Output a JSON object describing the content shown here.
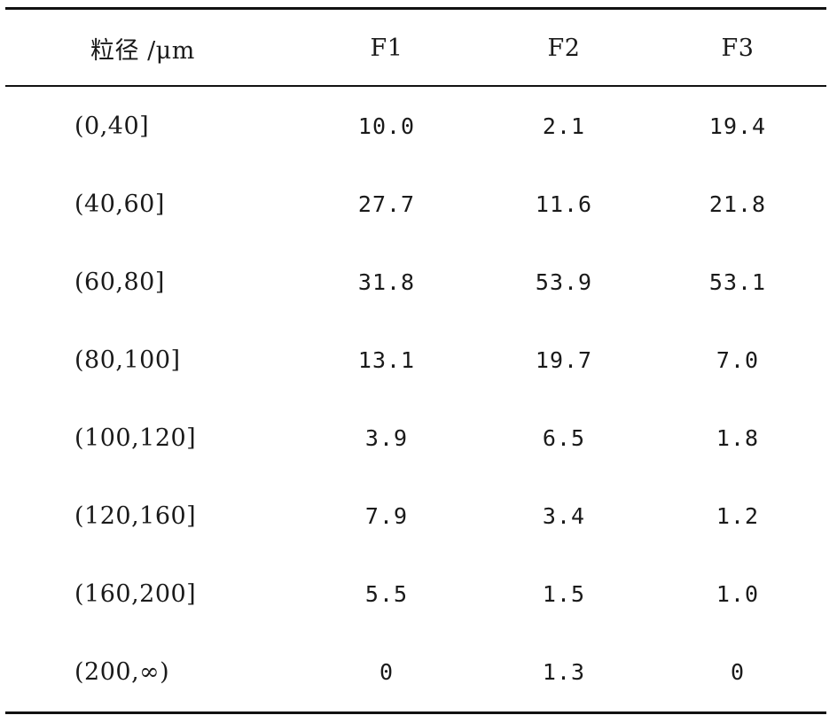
{
  "table": {
    "headers": [
      "粒径 /μm",
      "F1",
      "F2",
      "F3"
    ],
    "rows": [
      [
        "(0,40]",
        "10.0",
        " 2.1",
        "19.4"
      ],
      [
        "(40,60]",
        "27.7",
        "11.6",
        "21.8"
      ],
      [
        "(60,80]",
        "31.8",
        "53.9",
        "53.1"
      ],
      [
        "(80,100]",
        "13.1",
        "19.7",
        " 7.0"
      ],
      [
        "(100,120]",
        " 3.9",
        " 6.5",
        " 1.8"
      ],
      [
        "(120,160]",
        " 7.9",
        " 3.4",
        " 1.2"
      ],
      [
        "(160,200]",
        " 5.5",
        " 1.5",
        " 1.0"
      ],
      [
        "(200,∞)",
        "0",
        " 1.3",
        "0"
      ]
    ]
  }
}
